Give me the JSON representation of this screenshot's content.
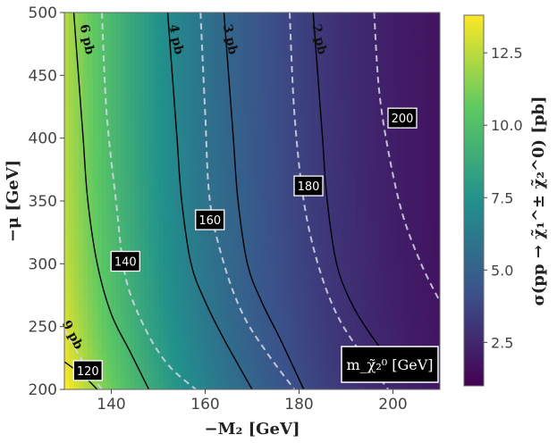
{
  "chart_data": {
    "type": "heatmap",
    "xlabel": "−M₂   [GeV]",
    "ylabel": "−μ   [GeV]",
    "xlim": [
      130,
      210
    ],
    "ylim": [
      200,
      500
    ],
    "xticks": [
      "140",
      "160",
      "180",
      "200"
    ],
    "xtick_values": [
      140,
      160,
      180,
      200
    ],
    "yticks": [
      "200",
      "250",
      "300",
      "350",
      "400",
      "450",
      "500"
    ],
    "ytick_values": [
      200,
      250,
      300,
      350,
      400,
      450,
      500
    ],
    "colorbar": {
      "label": "σ(pp → χ̃₁^± χ̃₂^0)   [pb]",
      "range": [
        1.0,
        13.8
      ],
      "ticks": [
        "2.5",
        "5.0",
        "7.5",
        "10.0",
        "12.5"
      ],
      "tick_values": [
        2.5,
        5.0,
        7.5,
        10.0,
        12.5
      ],
      "colormap": [
        "#440154",
        "#3b528b",
        "#21918c",
        "#5ec962",
        "#fde725"
      ]
    },
    "xsec_contours": [
      {
        "label": "9 pb",
        "points": [
          [
            130,
            222
          ],
          [
            134,
            211
          ],
          [
            137,
            200
          ]
        ]
      },
      {
        "label": "6 pb",
        "points": [
          [
            132,
            500
          ],
          [
            133,
            450
          ],
          [
            134,
            400
          ],
          [
            135,
            350
          ],
          [
            137,
            300
          ],
          [
            140,
            260
          ],
          [
            144,
            230
          ],
          [
            148,
            200
          ]
        ]
      },
      {
        "label": "4 pb",
        "points": [
          [
            152,
            500
          ],
          [
            153,
            450
          ],
          [
            154,
            400
          ],
          [
            155,
            350
          ],
          [
            157,
            300
          ],
          [
            160,
            270
          ],
          [
            164,
            240
          ],
          [
            170,
            200
          ]
        ]
      },
      {
        "label": "3 pb",
        "points": [
          [
            164,
            500
          ],
          [
            165,
            450
          ],
          [
            166,
            400
          ],
          [
            167,
            350
          ],
          [
            169,
            300
          ],
          [
            172,
            270
          ],
          [
            176,
            240
          ],
          [
            181,
            200
          ]
        ]
      },
      {
        "label": "2 pb",
        "points": [
          [
            183,
            500
          ],
          [
            184,
            450
          ],
          [
            185,
            400
          ],
          [
            186,
            350
          ],
          [
            188,
            300
          ],
          [
            191,
            270
          ],
          [
            195,
            245
          ],
          [
            201,
            215
          ]
        ]
      }
    ],
    "mass_contours": [
      {
        "label": "120",
        "points": [
          [
            130,
            248
          ],
          [
            133,
            228
          ],
          [
            136,
            210
          ],
          [
            138,
            200
          ]
        ]
      },
      {
        "label": "140",
        "points": [
          [
            138,
            500
          ],
          [
            139,
            420
          ],
          [
            141,
            350
          ],
          [
            143,
            290
          ],
          [
            147,
            250
          ],
          [
            152,
            220
          ],
          [
            158,
            200
          ]
        ]
      },
      {
        "label": "160",
        "points": [
          [
            159,
            500
          ],
          [
            160,
            420
          ],
          [
            161,
            350
          ],
          [
            164,
            300
          ],
          [
            168,
            260
          ],
          [
            173,
            230
          ],
          [
            179,
            200
          ]
        ]
      },
      {
        "label": "180",
        "points": [
          [
            178,
            500
          ],
          [
            179,
            420
          ],
          [
            181,
            350
          ],
          [
            184,
            300
          ],
          [
            188,
            260
          ],
          [
            193,
            230
          ],
          [
            199,
            200
          ]
        ]
      },
      {
        "label": "200",
        "points": [
          [
            196,
            500
          ],
          [
            197,
            440
          ],
          [
            199,
            390
          ],
          [
            202,
            340
          ],
          [
            206,
            300
          ],
          [
            210,
            270
          ]
        ]
      }
    ],
    "mass_labels": [
      {
        "text": "120",
        "x": 135,
        "y": 215
      },
      {
        "text": "140",
        "x": 143,
        "y": 302
      },
      {
        "text": "160",
        "x": 161,
        "y": 335
      },
      {
        "text": "180",
        "x": 182,
        "y": 362
      },
      {
        "text": "200",
        "x": 202,
        "y": 416
      }
    ],
    "xsec_labels": [
      {
        "text": "6 pb",
        "x": 134,
        "y": 478
      },
      {
        "text": "4 pb",
        "x": 153,
        "y": 478
      },
      {
        "text": "3 pb",
        "x": 164.5,
        "y": 478
      },
      {
        "text": "2 pb",
        "x": 183.5,
        "y": 478
      },
      {
        "text": "9 pb",
        "x": 131,
        "y": 242
      }
    ],
    "legend_label": "m_χ̃₂⁰ [GeV]"
  }
}
